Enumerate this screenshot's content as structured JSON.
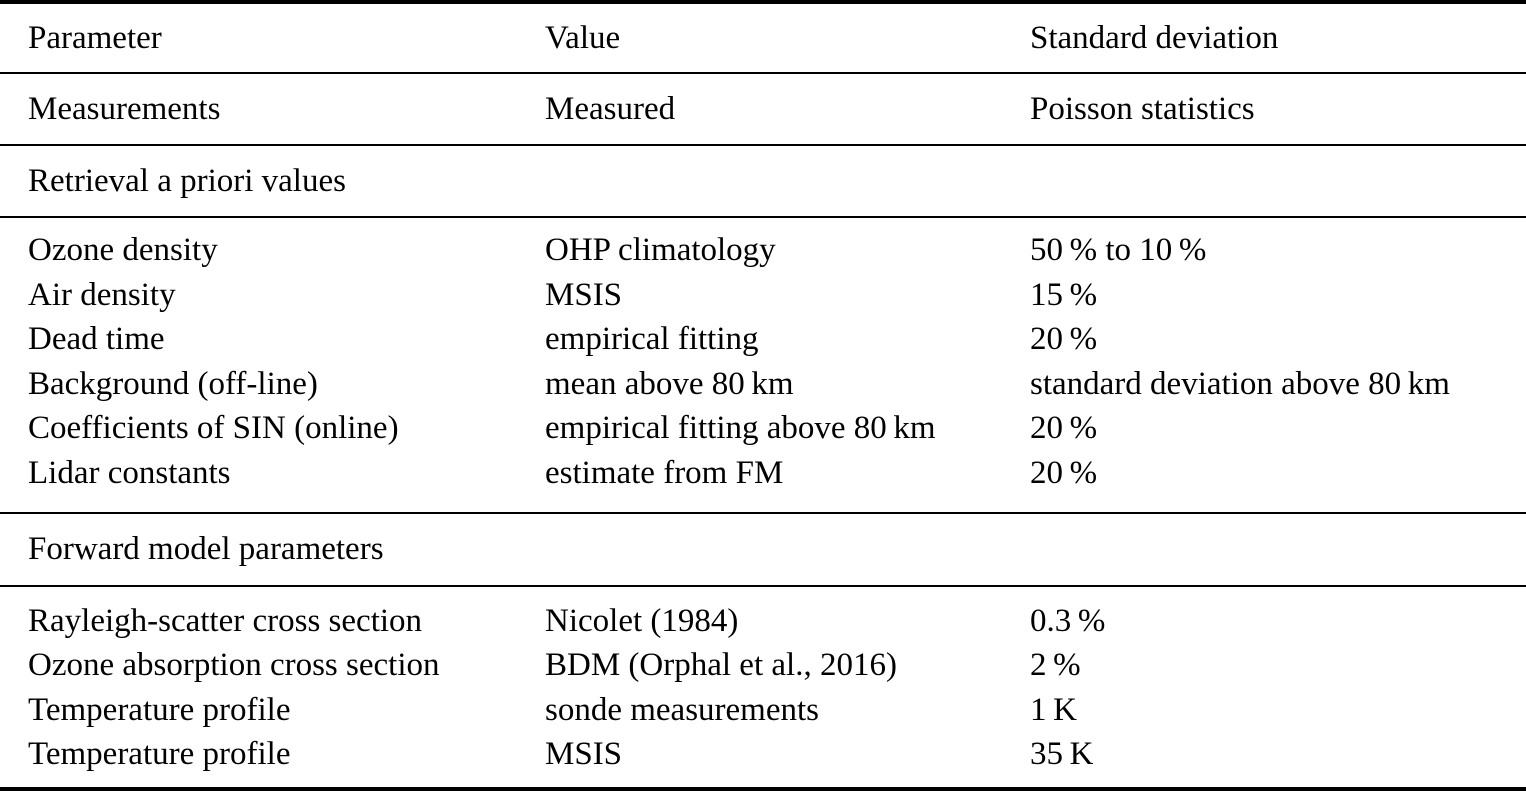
{
  "table": {
    "header": {
      "cells": [
        "Parameter",
        "Value",
        "Standard deviation"
      ]
    },
    "measurements_row": {
      "cells": [
        "Measurements",
        "Measured",
        "Poisson statistics"
      ]
    },
    "section1": {
      "title": "Retrieval a priori values",
      "rows": [
        [
          "Ozone density",
          "OHP climatology",
          "50 % to 10 %"
        ],
        [
          "Air density",
          "MSIS",
          "15 %"
        ],
        [
          "Dead time",
          "empirical fitting",
          "20 %"
        ],
        [
          "Background (off-line)",
          "mean above 80 km",
          "standard deviation above 80 km"
        ],
        [
          "Coefficients of SIN (online)",
          "empirical fitting above 80 km",
          "20 %"
        ],
        [
          "Lidar constants",
          "estimate from FM",
          "20 %"
        ]
      ]
    },
    "section2": {
      "title": "Forward model parameters",
      "rows": [
        [
          "Rayleigh-scatter cross section",
          "Nicolet (1984)",
          "0.3 %"
        ],
        [
          "Ozone absorption cross section",
          "BDM (Orphal et al., 2016)",
          "2 %"
        ],
        [
          "Temperature profile",
          "sonde measurements",
          "1 K"
        ],
        [
          "Temperature profile",
          "MSIS",
          "35 K"
        ]
      ]
    },
    "colors": {
      "text": "#000000",
      "background": "#ffffff",
      "rule": "#000000"
    }
  }
}
